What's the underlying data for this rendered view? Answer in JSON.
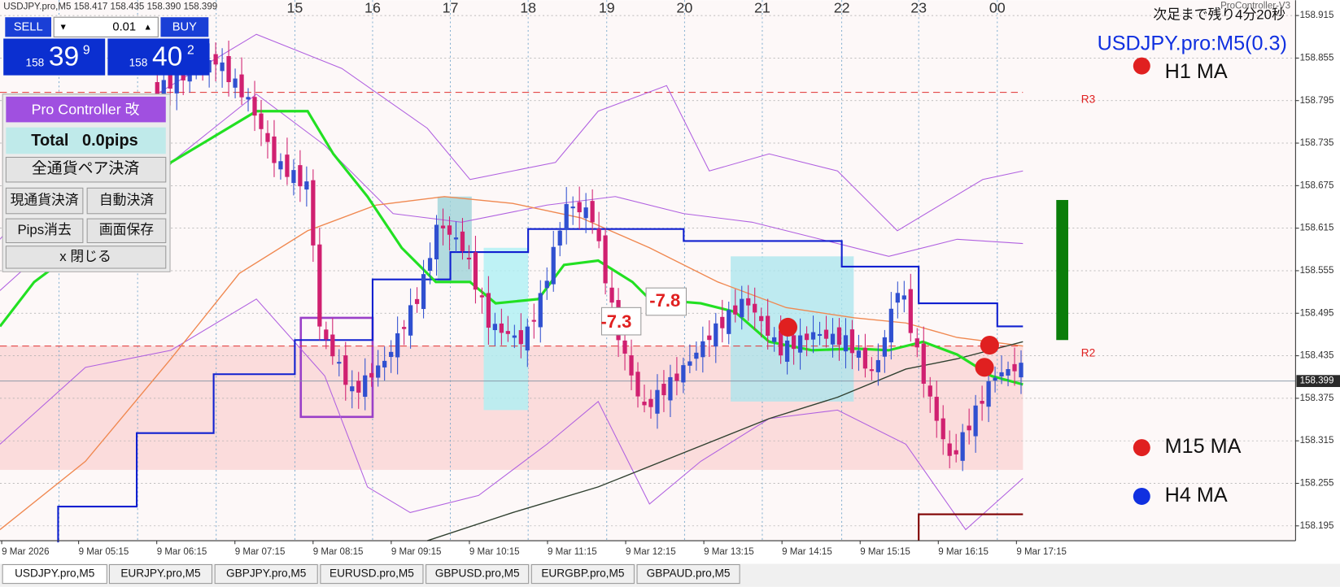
{
  "header": {
    "symbol_info": "USDJPY.pro,M5  158.417 158.435 158.390 158.399",
    "platform_label": "ProController-V3",
    "countdown": "次足まで残り4分20秒",
    "symbol_title": "USDJPY.pro:M5(0.3)",
    "ma_labels": [
      "H1 MA",
      "M15 MA",
      "H4 MA"
    ]
  },
  "trade_panel": {
    "sell": "SELL",
    "lot": "0.01",
    "buy": "BUY",
    "sell_price": {
      "big": "158",
      "main": "39",
      "small": "9"
    },
    "buy_price": {
      "big": "158",
      "main": "40",
      "small": "2"
    }
  },
  "controller": {
    "title": "Pro Controller 改",
    "total": "Total   0.0pips",
    "close_all": "全通貨ペア決済",
    "close_current": "現通貨決済",
    "auto_close": "自動決済",
    "clear_pips": "Pips消去",
    "save_screen": "画面保存",
    "close": "x 閉じる"
  },
  "levels": {
    "r3": "R3",
    "r2": "R2"
  },
  "trade_results": [
    "-7.8",
    "-7.3"
  ],
  "date_labels": [
    "15",
    "16",
    "17",
    "18",
    "19",
    "20",
    "21",
    "22",
    "23",
    "00"
  ],
  "price_axis": {
    "labels": [
      "158.915",
      "158.855",
      "158.795",
      "158.735",
      "158.675",
      "158.615",
      "158.555",
      "158.495",
      "158.435",
      "158.375",
      "158.315",
      "158.255",
      "158.195"
    ],
    "current": "158.399"
  },
  "time_axis": [
    "9 Mar 2026",
    "9 Mar 05:15",
    "9 Mar 06:15",
    "9 Mar 07:15",
    "9 Mar 08:15",
    "9 Mar 09:15",
    "9 Mar 10:15",
    "9 Mar 11:15",
    "9 Mar 12:15",
    "9 Mar 13:15",
    "9 Mar 14:15",
    "9 Mar 15:15",
    "9 Mar 16:15",
    "9 Mar 17:15"
  ],
  "tabs": [
    "USDJPY.pro,M5",
    "EURJPY.pro,M5",
    "GBPJPY.pro,M5",
    "EURUSD.pro,M5",
    "GBPUSD.pro,M5",
    "EURGBP.pro,M5",
    "GBPAUD.pro,M5"
  ]
}
